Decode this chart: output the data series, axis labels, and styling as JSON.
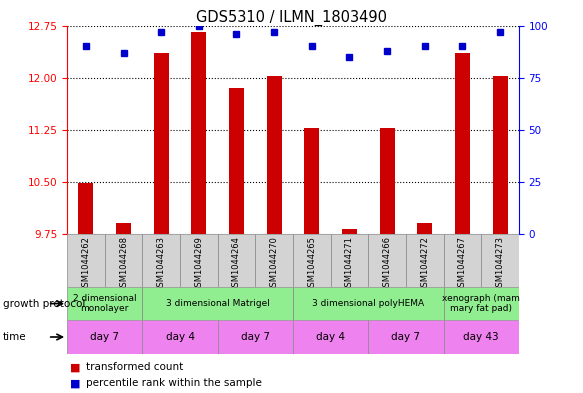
{
  "title": "GDS5310 / ILMN_1803490",
  "samples": [
    "GSM1044262",
    "GSM1044268",
    "GSM1044263",
    "GSM1044269",
    "GSM1044264",
    "GSM1044270",
    "GSM1044265",
    "GSM1044271",
    "GSM1044266",
    "GSM1044272",
    "GSM1044267",
    "GSM1044273"
  ],
  "transformed_counts": [
    10.48,
    9.9,
    12.35,
    12.65,
    11.85,
    12.02,
    11.28,
    9.82,
    11.28,
    9.9,
    12.36,
    12.02
  ],
  "percentile_ranks": [
    90,
    87,
    97,
    100,
    96,
    97,
    90,
    85,
    88,
    90,
    90,
    97
  ],
  "ylim_left": [
    9.75,
    12.75
  ],
  "ylim_right": [
    0,
    100
  ],
  "yticks_left": [
    9.75,
    10.5,
    11.25,
    12.0,
    12.75
  ],
  "yticks_right": [
    0,
    25,
    50,
    75,
    100
  ],
  "bar_color": "#cc0000",
  "dot_color": "#0000cc",
  "dot_size": 4,
  "bar_width": 0.4,
  "growth_protocol_groups": [
    {
      "label": "2 dimensional\nmonolayer",
      "start": 0,
      "end": 2,
      "color": "#90ee90"
    },
    {
      "label": "3 dimensional Matrigel",
      "start": 2,
      "end": 6,
      "color": "#90ee90"
    },
    {
      "label": "3 dimensional polyHEMA",
      "start": 6,
      "end": 10,
      "color": "#90ee90"
    },
    {
      "label": "xenograph (mam\nmary fat pad)",
      "start": 10,
      "end": 12,
      "color": "#90ee90"
    }
  ],
  "time_groups": [
    {
      "label": "day 7",
      "start": 0,
      "end": 2,
      "color": "#ee82ee"
    },
    {
      "label": "day 4",
      "start": 2,
      "end": 4,
      "color": "#ee82ee"
    },
    {
      "label": "day 7",
      "start": 4,
      "end": 6,
      "color": "#ee82ee"
    },
    {
      "label": "day 4",
      "start": 6,
      "end": 8,
      "color": "#ee82ee"
    },
    {
      "label": "day 7",
      "start": 8,
      "end": 10,
      "color": "#ee82ee"
    },
    {
      "label": "day 43",
      "start": 10,
      "end": 12,
      "color": "#ee82ee"
    }
  ],
  "sample_bg_color": "#d3d3d3",
  "legend_items": [
    {
      "label": "transformed count",
      "color": "#cc0000"
    },
    {
      "label": "percentile rank within the sample",
      "color": "#0000cc"
    }
  ],
  "grid_color": "black",
  "grid_linestyle": "dotted",
  "grid_linewidth": 0.8
}
